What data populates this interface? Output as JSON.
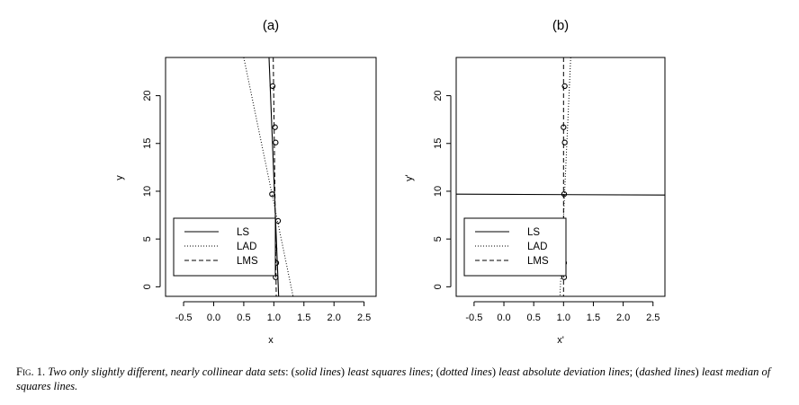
{
  "chart_data": [
    {
      "type": "scatter",
      "title": "(a)",
      "xlabel": "x",
      "ylabel": "y",
      "xlim": [
        -0.8,
        2.7
      ],
      "ylim": [
        -1,
        24
      ],
      "x_ticks": [
        -0.5,
        0.0,
        0.5,
        1.0,
        1.5,
        2.0,
        2.5
      ],
      "x_tick_labels": [
        "-0.5",
        "0.0",
        "0.5",
        "1.0",
        "1.5",
        "2.0",
        "2.5"
      ],
      "y_ticks": [
        0,
        5,
        10,
        15,
        20
      ],
      "y_tick_labels": [
        "0",
        "5",
        "10",
        "15",
        "20"
      ],
      "grid": false,
      "legend_position": "bottom-left",
      "points": [
        {
          "x": 0.98,
          "y": 21.0
        },
        {
          "x": 1.02,
          "y": 16.7
        },
        {
          "x": 1.03,
          "y": 15.1
        },
        {
          "x": 0.97,
          "y": 9.7
        },
        {
          "x": 1.07,
          "y": 6.9
        },
        {
          "x": 1.01,
          "y": 4.0
        },
        {
          "x": 1.04,
          "y": 2.5
        },
        {
          "x": 1.03,
          "y": 1.0
        }
      ],
      "series": [
        {
          "name": "LS",
          "style": "solid",
          "line": [
            [
              0.92,
              24
            ],
            [
              1.08,
              -1
            ]
          ]
        },
        {
          "name": "LAD",
          "style": "dotted",
          "line": [
            [
              0.5,
              24
            ],
            [
              1.32,
              -1
            ]
          ]
        },
        {
          "name": "LMS",
          "style": "dashed",
          "line": [
            [
              0.99,
              24
            ],
            [
              1.04,
              -1
            ]
          ]
        }
      ]
    },
    {
      "type": "scatter",
      "title": "(b)",
      "xlabel": "x'",
      "ylabel": "y'",
      "xlim": [
        -0.8,
        2.7
      ],
      "ylim": [
        -1,
        24
      ],
      "x_ticks": [
        -0.5,
        0.0,
        0.5,
        1.0,
        1.5,
        2.0,
        2.5
      ],
      "x_tick_labels": [
        "-0.5",
        "0.0",
        "0.5",
        "1.0",
        "1.5",
        "2.0",
        "2.5"
      ],
      "y_ticks": [
        0,
        5,
        10,
        15,
        20
      ],
      "y_tick_labels": [
        "0",
        "5",
        "10",
        "15",
        "20"
      ],
      "grid": false,
      "legend_position": "bottom-left",
      "points": [
        {
          "x": 1.02,
          "y": 21.0
        },
        {
          "x": 1.0,
          "y": 16.7
        },
        {
          "x": 1.02,
          "y": 15.1
        },
        {
          "x": 1.01,
          "y": 9.7
        },
        {
          "x": 0.99,
          "y": 6.7
        },
        {
          "x": 1.0,
          "y": 4.0
        },
        {
          "x": 1.01,
          "y": 2.5
        },
        {
          "x": 1.01,
          "y": 1.0
        }
      ],
      "series": [
        {
          "name": "LS",
          "style": "solid",
          "line": [
            [
              -0.8,
              9.7
            ],
            [
              2.7,
              9.6
            ]
          ]
        },
        {
          "name": "LAD",
          "style": "dotted",
          "line": [
            [
              1.12,
              24
            ],
            [
              0.94,
              -1
            ]
          ]
        },
        {
          "name": "LMS",
          "style": "dashed",
          "line": [
            [
              1.0,
              24
            ],
            [
              1.0,
              -1
            ]
          ]
        }
      ]
    }
  ],
  "caption": {
    "lead": "Fig. 1.",
    "segments": [
      {
        "text": "Two only slightly different, nearly collinear data sets",
        "italic": true
      },
      {
        "text": ": (",
        "italic": false
      },
      {
        "text": "solid lines",
        "italic": true
      },
      {
        "text": ") ",
        "italic": false
      },
      {
        "text": "least squares lines",
        "italic": true
      },
      {
        "text": "; (",
        "italic": false
      },
      {
        "text": "dotted lines",
        "italic": true
      },
      {
        "text": ") ",
        "italic": false
      },
      {
        "text": "least absolute deviation lines",
        "italic": true
      },
      {
        "text": "; (",
        "italic": false
      },
      {
        "text": "dashed lines",
        "italic": true
      },
      {
        "text": ") ",
        "italic": false
      },
      {
        "text": "least median of squares lines.",
        "italic": true
      }
    ]
  }
}
